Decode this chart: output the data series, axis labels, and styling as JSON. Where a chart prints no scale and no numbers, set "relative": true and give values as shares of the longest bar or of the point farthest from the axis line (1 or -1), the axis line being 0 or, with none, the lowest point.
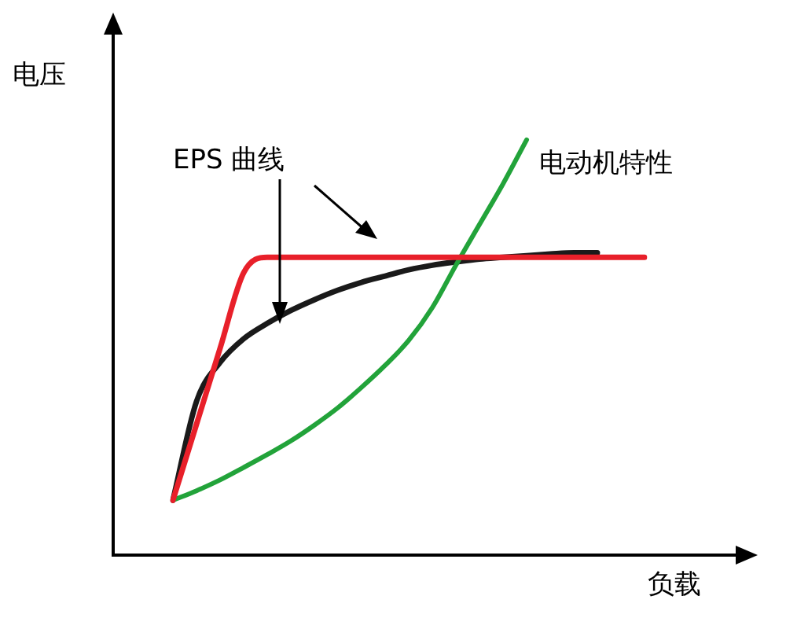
{
  "chart_data": {
    "type": "line",
    "relative": true,
    "xlabel": "负载",
    "ylabel": "电压",
    "annotations": [
      "EPS 曲线"
    ],
    "categories": [
      null,
      null,
      null,
      null,
      null,
      null,
      null,
      null,
      null,
      null,
      null,
      null,
      null,
      null,
      null,
      null,
      null,
      null,
      null,
      null,
      null
    ],
    "series": [
      {
        "color": "#e8202a",
        "values": [
          0.132,
          0.315,
          0.498,
          0.68,
          0.717,
          0.717,
          0.717,
          0.717,
          0.717,
          0.717,
          0.717,
          0.717,
          0.717,
          0.717,
          0.717,
          0.717,
          0.717,
          0.717,
          0.717,
          0.717,
          0.717
        ]
      },
      {
        "name": "电动机特性",
        "color": "#22a33a",
        "values": [
          0.132,
          0.155,
          0.181,
          0.211,
          0.242,
          0.275,
          0.313,
          0.355,
          0.404,
          0.457,
          0.517,
          0.596,
          0.698,
          0.796,
          0.894,
          1,
          null,
          null,
          null,
          null,
          null
        ]
      },
      {
        "color": "#1a1a1a",
        "values": [
          0.132,
          0.37,
          0.464,
          0.521,
          0.558,
          0.589,
          0.615,
          0.638,
          0.657,
          0.672,
          0.687,
          0.698,
          0.706,
          0.713,
          0.717,
          0.721,
          0.725,
          0.728,
          0.728,
          null,
          null
        ]
      }
    ]
  }
}
